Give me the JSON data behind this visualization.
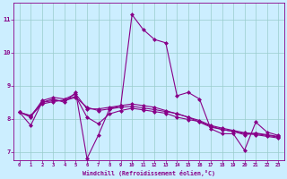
{
  "background_color": "#cceeff",
  "line_color": "#880088",
  "marker": "D",
  "marker_size": 2,
  "line_width": 0.8,
  "x_data": [
    0,
    1,
    2,
    3,
    4,
    5,
    6,
    7,
    8,
    9,
    10,
    11,
    12,
    13,
    14,
    15,
    16,
    17,
    18,
    19,
    20,
    21,
    22,
    23
  ],
  "series": [
    [
      8.2,
      7.8,
      8.5,
      8.6,
      8.5,
      8.8,
      6.8,
      7.5,
      8.3,
      8.4,
      11.15,
      10.7,
      10.4,
      10.3,
      8.7,
      8.8,
      8.6,
      7.7,
      7.55,
      7.55,
      7.05,
      7.9,
      7.6,
      7.5
    ],
    [
      8.2,
      8.05,
      8.55,
      8.65,
      8.6,
      8.75,
      8.3,
      8.3,
      8.35,
      8.4,
      8.45,
      8.4,
      8.35,
      8.25,
      8.15,
      8.05,
      7.95,
      7.8,
      7.72,
      7.65,
      7.58,
      7.55,
      7.5,
      7.45
    ],
    [
      8.2,
      8.1,
      8.5,
      8.55,
      8.55,
      8.65,
      8.35,
      8.25,
      8.3,
      8.35,
      8.38,
      8.33,
      8.28,
      8.22,
      8.16,
      8.05,
      7.9,
      7.75,
      7.68,
      7.62,
      7.56,
      7.52,
      7.47,
      7.42
    ],
    [
      8.2,
      8.08,
      8.45,
      8.52,
      8.57,
      8.68,
      8.05,
      7.85,
      8.15,
      8.25,
      8.32,
      8.27,
      8.22,
      8.17,
      8.05,
      7.98,
      7.92,
      7.78,
      7.68,
      7.62,
      7.52,
      7.57,
      7.52,
      7.47
    ]
  ],
  "xlim": [
    -0.5,
    23.5
  ],
  "ylim": [
    6.75,
    11.5
  ],
  "yticks": [
    7,
    8,
    9,
    10,
    11
  ],
  "xticks": [
    0,
    1,
    2,
    3,
    4,
    5,
    6,
    7,
    8,
    9,
    10,
    11,
    12,
    13,
    14,
    15,
    16,
    17,
    18,
    19,
    20,
    21,
    22,
    23
  ],
  "xlabel": "Windchill (Refroidissement éolien,°C)",
  "grid_color": "#99cccc",
  "tick_label_color": "#880088",
  "axis_label_color": "#880088"
}
